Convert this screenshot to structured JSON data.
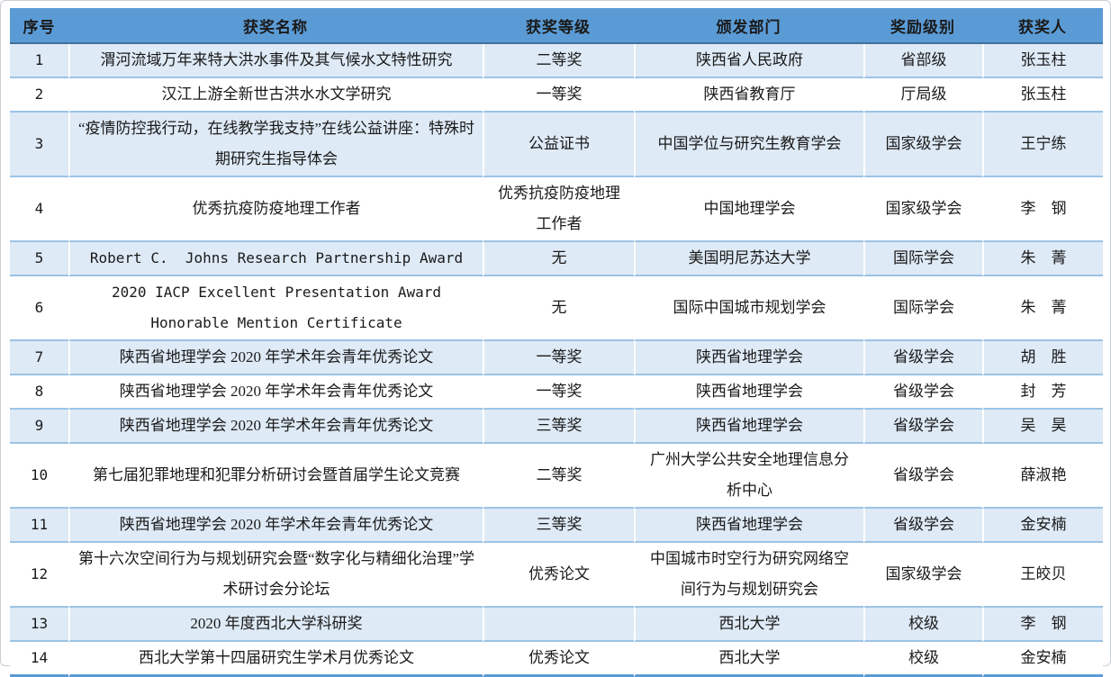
{
  "table": {
    "columns": [
      {
        "key": "index",
        "label": "序号"
      },
      {
        "key": "name",
        "label": "获奖名称"
      },
      {
        "key": "level",
        "label": "获奖等级"
      },
      {
        "key": "department",
        "label": "颁发部门"
      },
      {
        "key": "rank",
        "label": "奖励级别"
      },
      {
        "key": "awardee",
        "label": "获奖人"
      }
    ],
    "rows": [
      {
        "index": "1",
        "name": "渭河流域万年来特大洪水事件及其气候水文特性研究",
        "level": "二等奖",
        "department": "陕西省人民政府",
        "rank": "省部级",
        "awardee": "张玉柱"
      },
      {
        "index": "2",
        "name": "汉江上游全新世古洪水水文学研究",
        "level": "一等奖",
        "department": "陕西省教育厅",
        "rank": "厅局级",
        "awardee": "张玉柱"
      },
      {
        "index": "3",
        "name": "“疫情防控我行动，在线教学我支持”在线公益讲座：特殊时期研究生指导体会",
        "level": "公益证书",
        "department": "中国学位与研究生教育学会",
        "rank": "国家级学会",
        "awardee": "王宁练"
      },
      {
        "index": "4",
        "name": "优秀抗疫防疫地理工作者",
        "level": "优秀抗疫防疫地理工作者",
        "department": "中国地理学会",
        "rank": "国家级学会",
        "awardee": "李　钢"
      },
      {
        "index": "5",
        "name": "Robert C.  Johns Research Partnership Award",
        "level": "无",
        "department": "美国明尼苏达大学",
        "rank": "国际学会",
        "awardee": "朱　菁"
      },
      {
        "index": "6",
        "name": "2020 IACP Excellent Presentation Award Honorable Mention Certificate",
        "level": "无",
        "department": "国际中国城市规划学会",
        "rank": "国际学会",
        "awardee": "朱　菁"
      },
      {
        "index": "7",
        "name": "陕西省地理学会 2020 年学术年会青年优秀论文",
        "level": "一等奖",
        "department": "陕西省地理学会",
        "rank": "省级学会",
        "awardee": "胡　胜"
      },
      {
        "index": "8",
        "name": "陕西省地理学会 2020 年学术年会青年优秀论文",
        "level": "一等奖",
        "department": "陕西省地理学会",
        "rank": "省级学会",
        "awardee": "封　芳"
      },
      {
        "index": "9",
        "name": "陕西省地理学会 2020 年学术年会青年优秀论文",
        "level": "三等奖",
        "department": "陕西省地理学会",
        "rank": "省级学会",
        "awardee": "吴　昊"
      },
      {
        "index": "10",
        "name": "第七届犯罪地理和犯罪分析研讨会暨首届学生论文竞赛",
        "level": "二等奖",
        "department": "广州大学公共安全地理信息分析中心",
        "rank": "省级学会",
        "awardee": "薛淑艳"
      },
      {
        "index": "11",
        "name": "陕西省地理学会 2020 年学术年会青年优秀论文",
        "level": "三等奖",
        "department": "陕西省地理学会",
        "rank": "省级学会",
        "awardee": "金安楠"
      },
      {
        "index": "12",
        "name": "第十六次空间行为与规划研究会暨“数字化与精细化治理”学术研讨会分论坛",
        "level": "优秀论文",
        "department": "中国城市时空行为研究网络空间行为与规划研究会",
        "rank": "国家级学会",
        "awardee": "王皎贝"
      },
      {
        "index": "13",
        "name": "2020 年度西北大学科研奖",
        "level": "",
        "department": "西北大学",
        "rank": "校级",
        "awardee": "李　钢"
      },
      {
        "index": "14",
        "name": "西北大学第十四届研究生学术月优秀论文",
        "level": "优秀论文",
        "department": "西北大学",
        "rank": "校级",
        "awardee": "金安楠"
      }
    ],
    "colors": {
      "header_bg": "#5B9BD5",
      "band_bg": "#DEEAF6",
      "grid_line": "#9CC3E5",
      "header_line": "#41719C",
      "bottom_line": "#5B9BD5",
      "text": "#1a1a1a"
    }
  }
}
